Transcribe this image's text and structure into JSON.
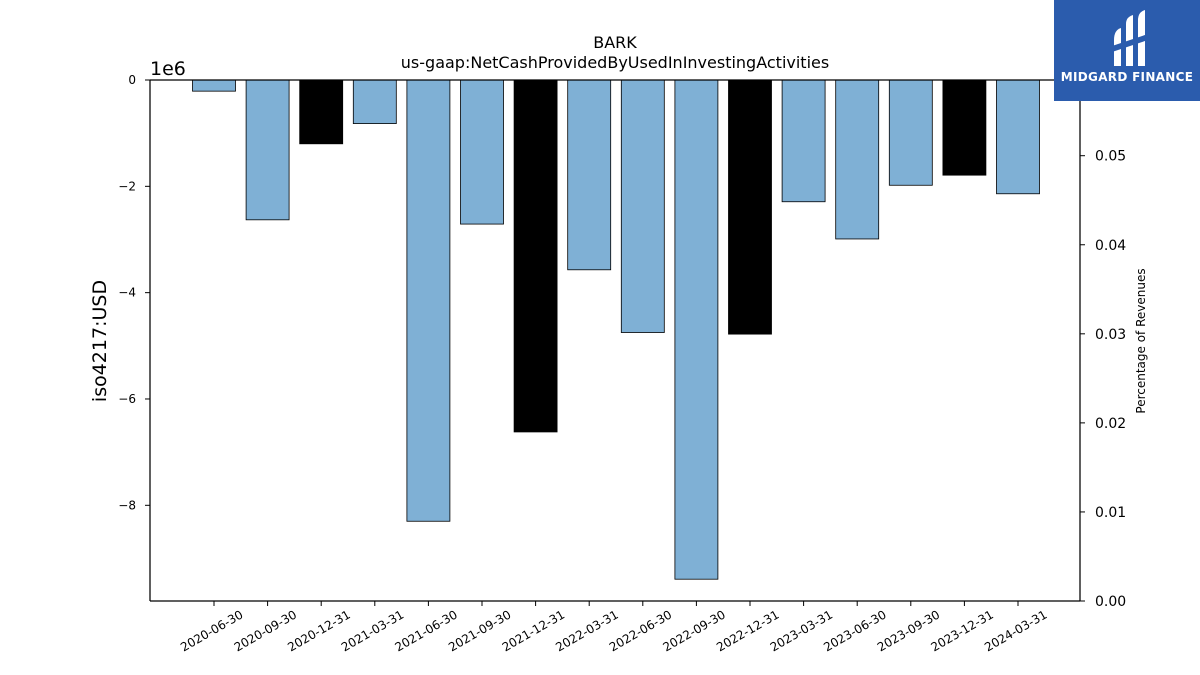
{
  "chart_data": {
    "type": "bar",
    "title": "BARK",
    "subtitle": "us-gaap:NetCashProvidedByUsedInInvestingActivities",
    "ylabel": "iso4217:USD",
    "y_offset_label": "1e6",
    "y2label": "Percentage of Revenues",
    "ylim": [
      -9.8,
      0
    ],
    "y2lim": [
      0,
      0.0585
    ],
    "yticks": [
      "0",
      "−2",
      "−4",
      "−6",
      "−8"
    ],
    "y2ticks": [
      "0.00",
      "0.01",
      "0.02",
      "0.03",
      "0.04",
      "0.05"
    ],
    "categories": [
      "2020-06-30",
      "2020-09-30",
      "2020-12-31",
      "2021-03-31",
      "2021-06-30",
      "2021-09-30",
      "2021-12-31",
      "2022-03-31",
      "2022-06-30",
      "2022-09-30",
      "2022-12-31",
      "2023-03-31",
      "2023-06-30",
      "2023-09-30",
      "2023-12-31",
      "2024-03-31"
    ],
    "values": [
      -0.21,
      -2.63,
      -1.2,
      -0.82,
      -8.3,
      -2.71,
      -6.62,
      -3.57,
      -4.75,
      -9.39,
      -4.78,
      -2.29,
      -2.99,
      -1.98,
      -1.79,
      -2.14
    ],
    "bar_colors": [
      "#7fb0d5",
      "#7fb0d5",
      "#000000",
      "#7fb0d5",
      "#7fb0d5",
      "#7fb0d5",
      "#000000",
      "#7fb0d5",
      "#7fb0d5",
      "#7fb0d5",
      "#000000",
      "#7fb0d5",
      "#7fb0d5",
      "#7fb0d5",
      "#000000",
      "#7fb0d5"
    ],
    "grid": false,
    "legend": "none"
  },
  "logo": {
    "text": "MIDGARD FINANCE",
    "color": "#2b5cad"
  }
}
